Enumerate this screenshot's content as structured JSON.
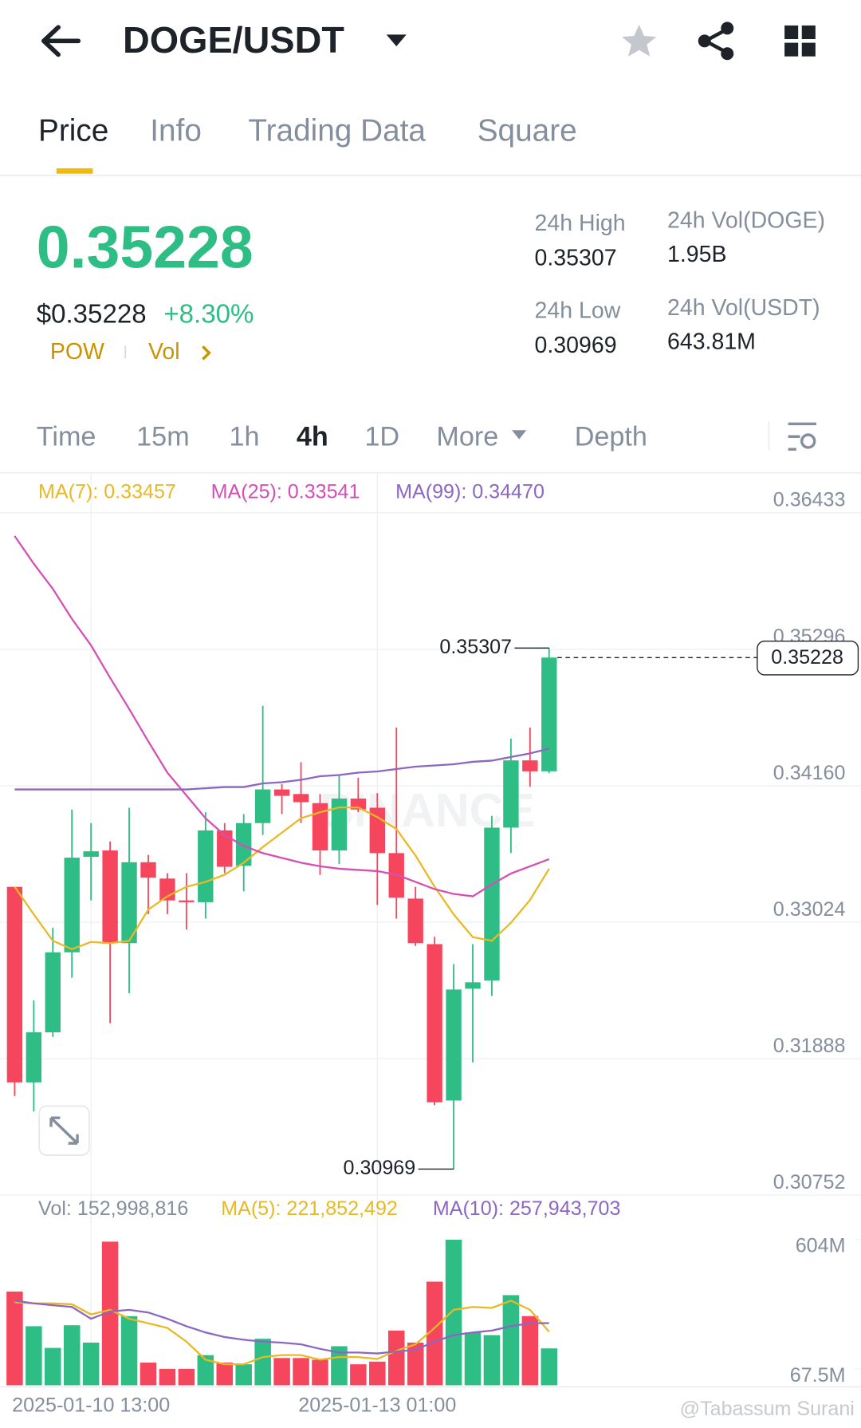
{
  "header": {
    "pair": "DOGE/USDT"
  },
  "tabs": [
    "Price",
    "Info",
    "Trading Data",
    "Square"
  ],
  "price": {
    "last": "0.35228",
    "usd": "$0.35228",
    "change": "+8.30%",
    "tags": [
      "POW",
      "Vol"
    ]
  },
  "stats": [
    {
      "label": "24h High",
      "value": "0.35307"
    },
    {
      "label": "24h Vol(DOGE)",
      "value": "1.95B"
    },
    {
      "label": "24h Low",
      "value": "0.30969"
    },
    {
      "label": "24h Vol(USDT)",
      "value": "643.81M"
    }
  ],
  "intervals": [
    "Time",
    "15m",
    "1h",
    "4h",
    "1D",
    "More",
    "Depth"
  ],
  "chart_data": {
    "type": "candlestick",
    "watermark": "BINANCE",
    "ylim": [
      0.30752,
      0.36765
    ],
    "yticks": [
      0.36433,
      0.35296,
      {
        "value": 0.3416,
        "label": "0.34160"
      },
      0.33024,
      0.31888,
      0.30752
    ],
    "categories": [
      null,
      null,
      null,
      null,
      "2025-01-10 13:00",
      null,
      null,
      null,
      null,
      null,
      null,
      null,
      null,
      null,
      null,
      null,
      null,
      null,
      null,
      "2025-01-13 01:00",
      null,
      null,
      null,
      null,
      null,
      null,
      null,
      null,
      null
    ],
    "open": [
      0.33319,
      0.31691,
      0.32108,
      0.32774,
      0.33569,
      0.33622,
      0.3285,
      0.33524,
      0.33388,
      0.33206,
      0.33191,
      0.33789,
      0.33494,
      0.3385,
      0.3413,
      0.34092,
      0.34016,
      0.33622,
      0.34054,
      0.33978,
      0.336,
      0.33221,
      0.32842,
      0.3154,
      0.32471,
      0.32539,
      0.33812,
      0.34372,
      0.34281
    ],
    "high": [
      0.33319,
      0.32373,
      0.32979,
      0.33963,
      0.3385,
      0.33698,
      0.33978,
      0.33585,
      0.33433,
      0.33433,
      0.3394,
      0.3385,
      0.33925,
      0.34826,
      0.34175,
      0.34357,
      0.34092,
      0.34243,
      0.34228,
      0.341,
      0.34645,
      0.33319,
      0.32903,
      0.32676,
      0.32842,
      0.3391,
      0.34554,
      0.34645,
      0.35307
    ],
    "low": [
      0.31578,
      0.31449,
      0.3207,
      0.32562,
      0.33206,
      0.32184,
      0.32433,
      0.33092,
      0.33092,
      0.32964,
      0.33054,
      0.33433,
      0.33282,
      0.33751,
      0.33925,
      0.3385,
      0.33418,
      0.33509,
      0.3394,
      0.33168,
      0.33054,
      0.32827,
      0.31502,
      0.30969,
      0.31858,
      0.32411,
      0.336,
      0.34153,
      0.34266
    ],
    "close": [
      0.31691,
      0.32108,
      0.32774,
      0.33562,
      0.33615,
      0.3285,
      0.33524,
      0.33395,
      0.33206,
      0.33191,
      0.33789,
      0.33486,
      0.3385,
      0.3413,
      0.34077,
      0.34024,
      0.33622,
      0.34054,
      0.33963,
      0.336,
      0.33229,
      0.3285,
      0.31525,
      0.32464,
      0.32524,
      0.33812,
      0.34372,
      0.34281,
      0.35228
    ],
    "up_color": "#2ebd85",
    "down_color": "#f6465d",
    "series": [
      {
        "label": "MA(7): 0.33457",
        "color": "#e8b923",
        "values": [
          0.3332,
          0.3309,
          0.3287,
          0.328,
          0.3286,
          0.3285,
          0.3287,
          0.3313,
          0.3324,
          0.3332,
          0.3336,
          0.3342,
          0.3352,
          0.3365,
          0.3377,
          0.3389,
          0.3394,
          0.3398,
          0.3398,
          0.339,
          0.338,
          0.3358,
          0.3332,
          0.3309,
          0.329,
          0.3287,
          0.3302,
          0.3321,
          0.3347
        ]
      },
      {
        "label": "MA(25): 0.33541",
        "color": "#d64fb4",
        "values": [
          0.3624,
          0.3601,
          0.358,
          0.3555,
          0.3533,
          0.3506,
          0.348,
          0.3453,
          0.3427,
          0.3408,
          0.3389,
          0.3375,
          0.3366,
          0.336,
          0.3356,
          0.3352,
          0.3349,
          0.3347,
          0.3346,
          0.3345,
          0.3342,
          0.3336,
          0.333,
          0.3326,
          0.3324,
          0.3334,
          0.3343,
          0.3349,
          0.3355
        ]
      },
      {
        "label": "MA(99): 0.34470",
        "color": "#8c67c2",
        "values": [
          0.3413,
          0.3413,
          0.3413,
          0.3413,
          0.3413,
          0.3413,
          0.3413,
          0.3413,
          0.3413,
          0.3413,
          0.3414,
          0.3415,
          0.3415,
          0.3418,
          0.3419,
          0.3421,
          0.3424,
          0.3425,
          0.3427,
          0.3428,
          0.343,
          0.3432,
          0.3433,
          0.3434,
          0.3436,
          0.3437,
          0.344,
          0.3443,
          0.3447
        ]
      }
    ]
  },
  "volume": {
    "type": "bar",
    "ylim": [
      0,
      604000000
    ],
    "yticks": [
      {
        "value": 604000000,
        "label": "604M"
      },
      {
        "value": 67500000,
        "label": "67.5M"
      }
    ],
    "label": "Vol: 152,998,816",
    "values": [
      389000000,
      245000000,
      155000000,
      249000000,
      177000000,
      596000000,
      287000000,
      94000000,
      68000000,
      68000000,
      125000000,
      94000000,
      87000000,
      193000000,
      113000000,
      113000000,
      106000000,
      162000000,
      87000000,
      98000000,
      227000000,
      177000000,
      430000000,
      604000000,
      219000000,
      208000000,
      374000000,
      287000000,
      152998816
    ],
    "series": [
      {
        "label": "MA(5): 221,852,492",
        "color": "#e8b923",
        "values": [
          344000000,
          340000000,
          340000000,
          336000000,
          294000000,
          313000000,
          276000000,
          257000000,
          238000000,
          181000000,
          106000000,
          87000000,
          87000000,
          117000000,
          125000000,
          125000000,
          106000000,
          117000000,
          117000000,
          109000000,
          143000000,
          170000000,
          238000000,
          313000000,
          325000000,
          321000000,
          351000000,
          313000000,
          221852492
        ]
      },
      {
        "label": "MA(10): 257,943,703",
        "color": "#8c67c2",
        "values": [
          351000000,
          340000000,
          332000000,
          325000000,
          276000000,
          306000000,
          313000000,
          302000000,
          276000000,
          245000000,
          219000000,
          200000000,
          189000000,
          181000000,
          177000000,
          170000000,
          151000000,
          136000000,
          136000000,
          132000000,
          140000000,
          147000000,
          181000000,
          208000000,
          219000000,
          227000000,
          245000000,
          257000000,
          257943703
        ]
      }
    ]
  },
  "credit": "@Tabassum Surani"
}
